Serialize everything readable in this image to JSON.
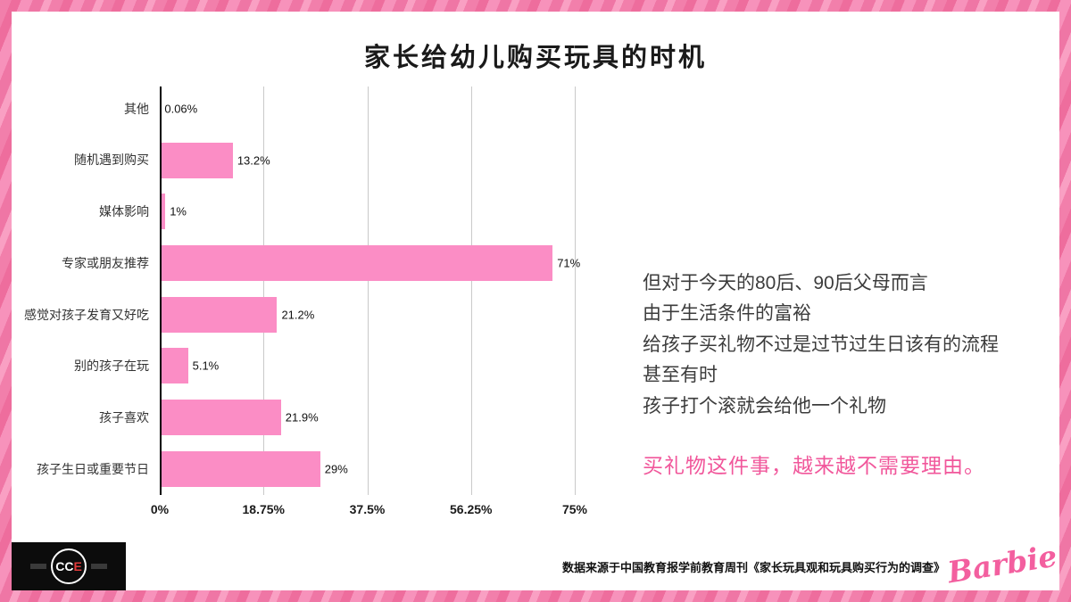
{
  "title": "家长给幼儿购买玩具的时机",
  "chart_data": {
    "type": "bar",
    "orientation": "horizontal",
    "title": "家长给幼儿购买玩具的时机",
    "categories": [
      "其他",
      "随机遇到购买",
      "媒体影响",
      "专家或朋友推荐",
      "感觉对孩子发育又好吃",
      "别的孩子在玩",
      "孩子喜欢",
      "孩子生日或重要节日"
    ],
    "values": [
      0.06,
      13.2,
      1,
      71,
      21.2,
      5.1,
      21.9,
      29
    ],
    "value_labels": [
      "0.06%",
      "13.2%",
      "1%",
      "71%",
      "21.2%",
      "5.1%",
      "21.9%",
      "29%"
    ],
    "x_ticks": [
      "0%",
      "18.75%",
      "37.5%",
      "56.25%",
      "75%"
    ],
    "x_tick_values": [
      0,
      18.75,
      37.5,
      56.25,
      75
    ],
    "xlim": [
      0,
      75
    ],
    "grid": true,
    "legend": "none",
    "bar_color": "#FB8DC5"
  },
  "annotation": {
    "lines": [
      "但对于今天的80后、90后父母而言",
      "由于生活条件的富裕",
      "给孩子买礼物不过是过节过生日该有的流程",
      "甚至有时",
      "孩子打个滚就会给他一个礼物"
    ],
    "highlight": "买礼物这件事，越来越不需要理由。",
    "highlight_color": "#F1579B"
  },
  "footer": {
    "source": "数据来源于中国教育报学前教育周刊《家长玩具观和玩具购买行为的调查》",
    "cce_logo_cc": "CC",
    "cce_logo_e": "E",
    "barbie_logo_text": "Barbie"
  },
  "colors": {
    "bar": "#FB8DC5",
    "frame_pink": "#EF76A5",
    "highlight_pink": "#F1579B",
    "barbie_pink": "#F35F9F",
    "gridline": "#C9C9C9",
    "axis": "#000000"
  }
}
